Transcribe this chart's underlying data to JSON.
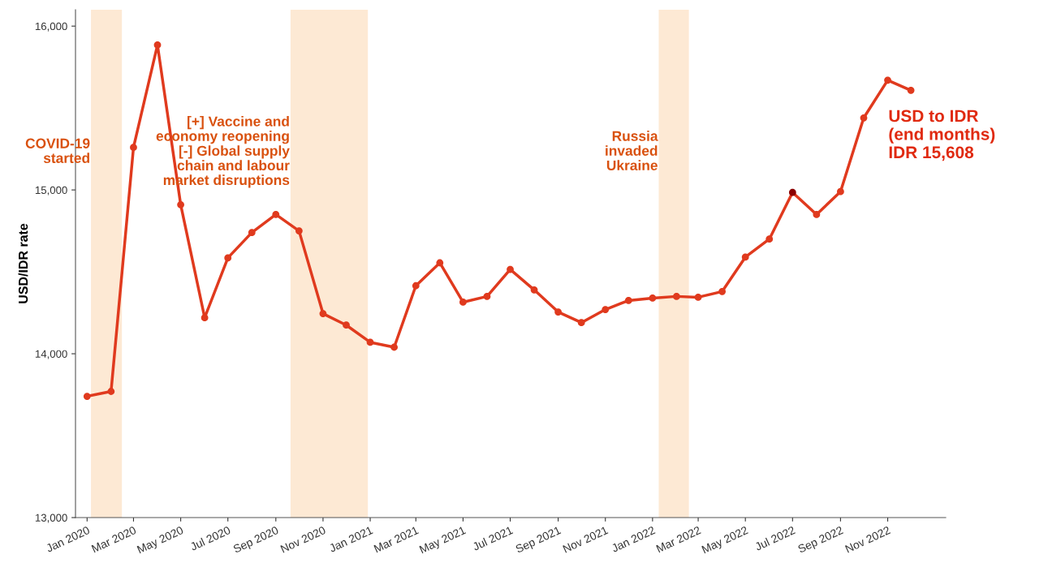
{
  "chart_data": {
    "type": "line",
    "ylabel": "USD/IDR rate",
    "x": [
      "2020-01",
      "2020-02",
      "2020-03",
      "2020-04",
      "2020-05",
      "2020-06",
      "2020-07",
      "2020-08",
      "2020-09",
      "2020-10",
      "2020-11",
      "2020-12",
      "2021-01",
      "2021-02",
      "2021-03",
      "2021-04",
      "2021-05",
      "2021-06",
      "2021-07",
      "2021-08",
      "2021-09",
      "2021-10",
      "2021-11",
      "2021-12",
      "2022-01",
      "2022-02",
      "2022-03",
      "2022-04",
      "2022-05",
      "2022-06",
      "2022-07",
      "2022-08",
      "2022-09",
      "2022-10",
      "2022-11",
      "2022-12"
    ],
    "series": [
      {
        "color": "#e03a1e",
        "colors": [
          "#e03a1e",
          "#e03a1e",
          "#e03a1e",
          "#e03a1e",
          "#e03a1e",
          "#e03a1e",
          "#e03a1e",
          "#e03a1e",
          "#e03a1e",
          "#e03a1e",
          "#e03a1e",
          "#e03a1e",
          "#e03a1e",
          "#e03a1e",
          "#e03a1e",
          "#e03a1e",
          "#e03a1e",
          "#e03a1e",
          "#e03a1e",
          "#e03a1e",
          "#e03a1e",
          "#e03a1e",
          "#e03a1e",
          "#e03a1e",
          "#e03a1e",
          "#e03a1e",
          "#e03a1e",
          "#e03a1e",
          "#e03a1e",
          "#e03a1e",
          "#8b0000",
          "#e03a1e",
          "#e03a1e",
          "#e03a1e",
          "#e03a1e",
          "#e03a1e"
        ],
        "values": [
          13740,
          13770,
          15260,
          15885,
          14910,
          14220,
          14585,
          14740,
          14850,
          14750,
          14245,
          14175,
          14070,
          14040,
          14415,
          14555,
          14315,
          14350,
          14515,
          14390,
          14255,
          14190,
          14270,
          14325,
          14340,
          14350,
          14345,
          14380,
          14590,
          14700,
          14985,
          14850,
          14990,
          15440,
          15670,
          15608
        ]
      }
    ],
    "xlim": [
      "2019-12-17",
      "2023-01-15"
    ],
    "xticks": [
      {
        "value": "2020-01",
        "label": "Jan 2020"
      },
      {
        "value": "2020-03",
        "label": "Mar 2020"
      },
      {
        "value": "2020-05",
        "label": "May 2020"
      },
      {
        "value": "2020-07",
        "label": "Jul 2020"
      },
      {
        "value": "2020-09",
        "label": "Sep 2020"
      },
      {
        "value": "2020-11",
        "label": "Nov 2020"
      },
      {
        "value": "2021-01",
        "label": "Jan 2021"
      },
      {
        "value": "2021-03",
        "label": "Mar 2021"
      },
      {
        "value": "2021-05",
        "label": "May 2021"
      },
      {
        "value": "2021-07",
        "label": "Jul 2021"
      },
      {
        "value": "2021-09",
        "label": "Sep 2021"
      },
      {
        "value": "2021-11",
        "label": "Nov 2021"
      },
      {
        "value": "2022-01",
        "label": "Jan 2022"
      },
      {
        "value": "2022-03",
        "label": "Mar 2022"
      },
      {
        "value": "2022-05",
        "label": "May 2022"
      },
      {
        "value": "2022-07",
        "label": "Jul 2022"
      },
      {
        "value": "2022-09",
        "label": "Sep 2022"
      },
      {
        "value": "2022-11",
        "label": "Nov 2022"
      }
    ],
    "ylim": [
      13000,
      16100
    ],
    "yticks": [
      {
        "value": 13000,
        "label": "13,000"
      },
      {
        "value": 14000,
        "label": "14,000"
      },
      {
        "value": 15000,
        "label": "15,000"
      },
      {
        "value": 16000,
        "label": "16,000"
      }
    ],
    "bands": [
      {
        "axis": "x",
        "from": "2020-01-06",
        "to": "2020-02-15",
        "label": "COVID-19\nstarted",
        "color": "#fde9d4"
      },
      {
        "axis": "x",
        "from": "2020-09-20",
        "to": "2020-12-29",
        "label": "[+] Vaccine and\neconomy reopening\n[-] Global supply\nchain and labour\nmarket disruptions",
        "color": "#fde9d4"
      },
      {
        "axis": "x",
        "from": "2022-01-09",
        "to": "2022-02-17",
        "label": "Russia\ninvaded\nUkraine",
        "color": "#fde9d4"
      }
    ],
    "annotations": [
      {
        "text": "USD to IDR\n(end months)\nIDR 15,608",
        "x": "2022-12",
        "y": 15608
      }
    ],
    "marker": "circle",
    "line_style": "solid",
    "grid": false,
    "legend": false
  }
}
